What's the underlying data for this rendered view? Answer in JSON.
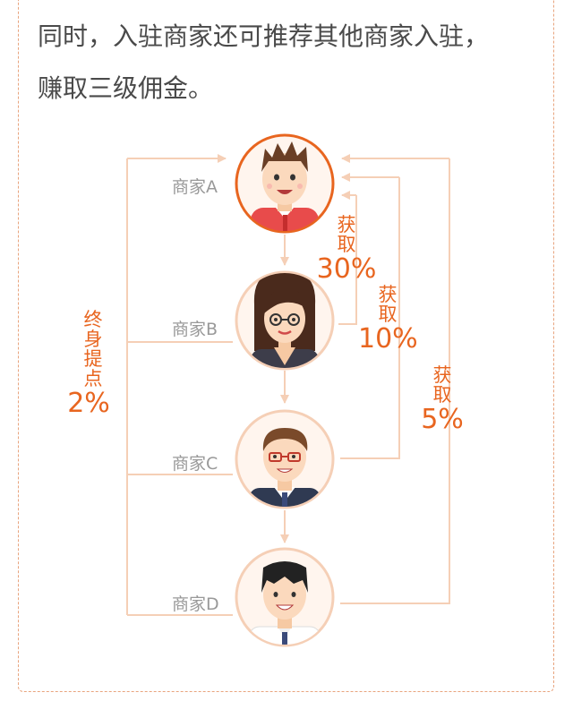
{
  "intro": {
    "line1": "同时，入驻商家还可推荐其他商家入驻，",
    "line2": "赚取三级佣金。"
  },
  "merchants": {
    "a": "商家A",
    "b": "商家B",
    "c": "商家C",
    "d": "商家D"
  },
  "commissions": {
    "level1": {
      "chars": [
        "获",
        "取"
      ],
      "percent": "30%"
    },
    "level2": {
      "chars": [
        "获",
        "取"
      ],
      "percent": "10%"
    },
    "level3": {
      "chars": [
        "获",
        "取"
      ],
      "percent": "5%"
    },
    "lifetime": {
      "chars": [
        "终",
        "身",
        "提",
        "点"
      ],
      "percent": "2%"
    }
  },
  "colors": {
    "accent": "#e8651f",
    "line": "#f5cfb6",
    "circle_border_a": "#e8651f",
    "circle_border": "#f5cfb6",
    "label": "#999999"
  },
  "icons": {
    "avatar_a": "merchant-a-avatar-icon",
    "avatar_b": "merchant-b-avatar-icon",
    "avatar_c": "merchant-c-avatar-icon",
    "avatar_d": "merchant-d-avatar-icon"
  }
}
